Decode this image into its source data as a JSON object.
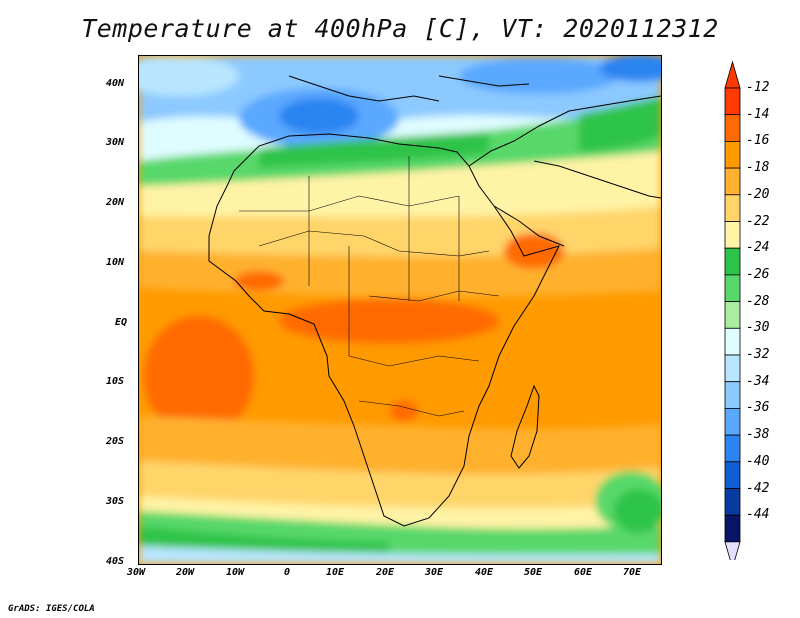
{
  "title": "Temperature at 400hPa [C], VT: 2020112312",
  "credit": "GrADS: IGES/COLA",
  "map": {
    "lat_labels": [
      "40N",
      "30N",
      "20N",
      "10N",
      "EQ",
      "10S",
      "20S",
      "30S",
      "40S"
    ],
    "lon_labels": [
      "30W",
      "20W",
      "10W",
      "0",
      "10E",
      "20E",
      "30E",
      "40E",
      "50E",
      "60E",
      "70E"
    ]
  },
  "colorbar": {
    "labels": [
      "-12",
      "-14",
      "-16",
      "-18",
      "-20",
      "-22",
      "-24",
      "-26",
      "-28",
      "-30",
      "-32",
      "-34",
      "-36",
      "-38",
      "-40",
      "-42",
      "-44"
    ],
    "colors": [
      "#ff3a00",
      "#ff6a00",
      "#ff9a00",
      "#ffb12f",
      "#ffd56a",
      "#fff3a6",
      "#2ec34a",
      "#58d86a",
      "#a8eda0",
      "#dffcff",
      "#b8e6ff",
      "#8cc9ff",
      "#5aa8ff",
      "#2c84f2",
      "#0f5ed6",
      "#0a3aa0",
      "#0a1466"
    ],
    "top_arrow_color": "#ff3a00",
    "bottom_arrow_color": "#e6e0ff"
  }
}
